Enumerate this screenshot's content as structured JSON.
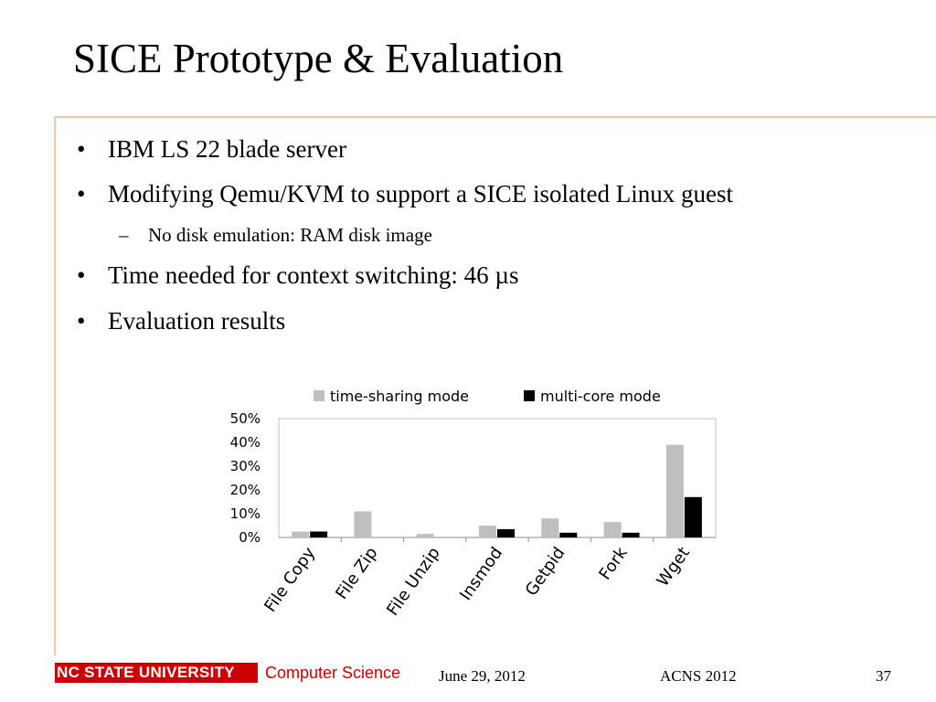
{
  "slide": {
    "title": "SICE Prototype & Evaluation",
    "bullets": [
      {
        "level": 1,
        "marker": "•",
        "text": "IBM LS 22 blade server"
      },
      {
        "level": 1,
        "marker": "•",
        "text": "Modifying Qemu/KVM to support a SICE isolated Linux guest"
      },
      {
        "level": 2,
        "marker": "–",
        "text": "No disk emulation: RAM disk image"
      },
      {
        "level": 1,
        "marker": "•",
        "text": "Time needed for context switching: 46 µs"
      },
      {
        "level": 1,
        "marker": "•",
        "text": "Evaluation results"
      }
    ]
  },
  "chart_data": {
    "type": "bar",
    "categories": [
      "File Copy",
      "File Zip",
      "File Unzip",
      "Insmod",
      "Getpid",
      "Fork",
      "Wget"
    ],
    "series": [
      {
        "name": "time-sharing mode",
        "color": "#bfbfbf",
        "values": [
          2.5,
          11,
          1.5,
          5,
          8,
          6.5,
          39
        ]
      },
      {
        "name": "multi-core mode",
        "color": "#000000",
        "values": [
          2.5,
          0,
          0,
          3.5,
          2,
          2,
          17
        ]
      }
    ],
    "ylim": [
      0,
      50
    ],
    "yticks": [
      "0%",
      "10%",
      "20%",
      "30%",
      "40%",
      "50%"
    ],
    "legend_position": "top",
    "grid": false
  },
  "colors": {
    "accent": "#cc0000",
    "frame": "#f2c9a8"
  },
  "footer": {
    "logo_text": "NC STATE UNIVERSITY",
    "department": "Computer Science",
    "date": "June 29, 2012",
    "conference": "ACNS 2012",
    "page_number": "37"
  }
}
